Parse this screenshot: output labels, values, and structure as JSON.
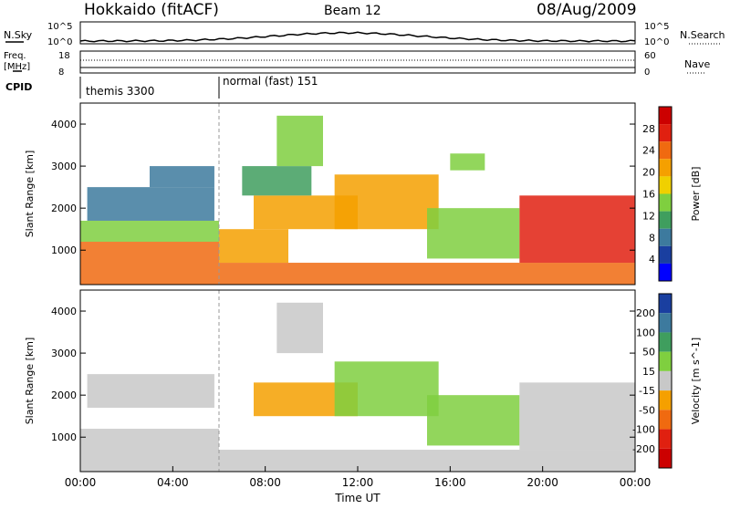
{
  "header": {
    "station": "Hokkaido (fitACF)",
    "beam": "Beam 12",
    "date": "08/Aug/2009"
  },
  "noise_panel": {
    "left_label": "N.Sky",
    "right_label": "N.Search",
    "left_ticks": [
      "10^5",
      "10^0"
    ],
    "right_ticks": [
      "10^5",
      "10^0"
    ]
  },
  "freq_panel": {
    "left_label_1": "Freq.",
    "left_label_2": "[MHz]",
    "right_label": "Nave",
    "left_ticks": [
      "18",
      "8"
    ],
    "right_ticks": [
      "60",
      "0"
    ]
  },
  "cpid": {
    "label": "CPID",
    "segments": [
      {
        "text": "themis 3300",
        "start_h": 0,
        "end_h": 6
      },
      {
        "text": "normal (fast) 151",
        "start_h": 6,
        "end_h": 24
      }
    ]
  },
  "chart_data": [
    {
      "type": "heatmap",
      "name": "power",
      "ylabel": "Slant Range [km]",
      "yticks": [
        "1000",
        "2000",
        "3000",
        "4000"
      ],
      "ylim": [
        180,
        4500
      ],
      "xlim": [
        0,
        24
      ],
      "colorbar_label": "Power [dB]",
      "colorbar_ticks": [
        "4",
        "8",
        "12",
        "16",
        "20",
        "24",
        "28"
      ],
      "colorbar_colors": [
        "#0000ff",
        "#1a3fa0",
        "#3d7a9e",
        "#3f9e5e",
        "#7fcf3f",
        "#f0d000",
        "#f5a000",
        "#f06a10",
        "#e02010",
        "#cc0000"
      ],
      "regions": [
        {
          "t0": 0.0,
          "t1": 6.0,
          "r0": 180,
          "r1": 1200,
          "v": 22
        },
        {
          "t0": 0.0,
          "t1": 6.0,
          "r0": 1200,
          "r1": 1700,
          "v": 14
        },
        {
          "t0": 0.3,
          "t1": 5.8,
          "r0": 1700,
          "r1": 2500,
          "v": 6
        },
        {
          "t0": 3.0,
          "t1": 5.8,
          "r0": 2500,
          "r1": 3000,
          "v": 7
        },
        {
          "t0": 6.0,
          "t1": 24.0,
          "r0": 180,
          "r1": 700,
          "v": 23
        },
        {
          "t0": 6.0,
          "t1": 9.0,
          "r0": 700,
          "r1": 1500,
          "v": 18
        },
        {
          "t0": 7.5,
          "t1": 12.0,
          "r0": 1500,
          "r1": 2300,
          "v": 20
        },
        {
          "t0": 7.0,
          "t1": 10.0,
          "r0": 2300,
          "r1": 3000,
          "v": 9
        },
        {
          "t0": 8.5,
          "t1": 10.5,
          "r0": 3000,
          "r1": 4200,
          "v": 13
        },
        {
          "t0": 11.0,
          "t1": 15.5,
          "r0": 1500,
          "r1": 2800,
          "v": 18
        },
        {
          "t0": 15.0,
          "t1": 19.0,
          "r0": 800,
          "r1": 2000,
          "v": 12
        },
        {
          "t0": 19.0,
          "t1": 24.0,
          "r0": 700,
          "r1": 2300,
          "v": 26
        },
        {
          "t0": 16.0,
          "t1": 17.5,
          "r0": 2900,
          "r1": 3300,
          "v": 14
        }
      ]
    },
    {
      "type": "heatmap",
      "name": "velocity",
      "ylabel": "Slant Range [km]",
      "yticks": [
        "1000",
        "2000",
        "3000",
        "4000"
      ],
      "ylim": [
        180,
        4500
      ],
      "xlim": [
        0,
        24
      ],
      "colorbar_label": "Velocity [m s^-1]",
      "colorbar_ticks": [
        "200",
        "100",
        "50",
        "15",
        "-15",
        "-50",
        "-100",
        "-200"
      ],
      "colorbar_colors": [
        "#1a3fa0",
        "#3d7a9e",
        "#3f9e5e",
        "#7fcf3f",
        "#c8c8c8",
        "#f5a000",
        "#f06a10",
        "#e02010",
        "#cc0000"
      ],
      "regions": [
        {
          "t0": 0.0,
          "t1": 6.0,
          "r0": 180,
          "r1": 1200,
          "v": 0
        },
        {
          "t0": 0.3,
          "t1": 5.8,
          "r0": 1700,
          "r1": 2500,
          "v": 5
        },
        {
          "t0": 6.0,
          "t1": 24.0,
          "r0": 180,
          "r1": 700,
          "v": 0
        },
        {
          "t0": 7.5,
          "t1": 12.0,
          "r0": 1500,
          "r1": 2300,
          "v": -20
        },
        {
          "t0": 11.0,
          "t1": 15.5,
          "r0": 1500,
          "r1": 2800,
          "v": 30
        },
        {
          "t0": 15.0,
          "t1": 19.0,
          "r0": 800,
          "r1": 2000,
          "v": 40
        },
        {
          "t0": 19.0,
          "t1": 24.0,
          "r0": 700,
          "r1": 2300,
          "v": 0
        },
        {
          "t0": 8.5,
          "t1": 10.5,
          "r0": 3000,
          "r1": 4200,
          "v": 0
        }
      ]
    }
  ],
  "x_axis": {
    "label": "Time UT",
    "ticks": [
      "00:00",
      "04:00",
      "08:00",
      "12:00",
      "16:00",
      "20:00",
      "00:00"
    ]
  }
}
